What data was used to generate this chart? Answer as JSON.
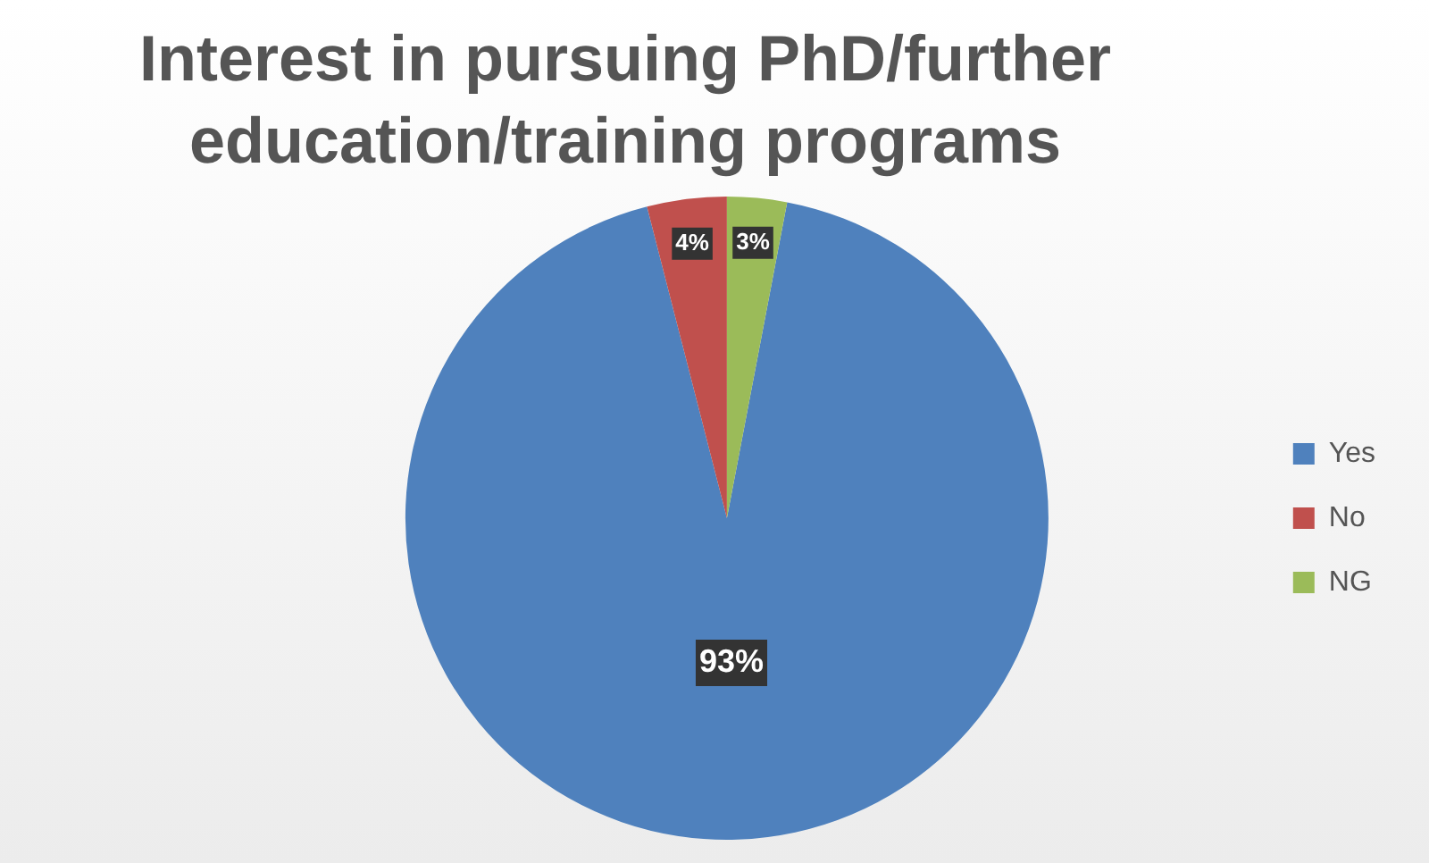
{
  "chart_data": {
    "type": "pie",
    "title": "Interest in pursuing PhD/further education/training programs",
    "categories": [
      "Yes",
      "No",
      "NG"
    ],
    "values": [
      93,
      4,
      3
    ],
    "colors": [
      "#4f81bd",
      "#c0504d",
      "#9bbb59"
    ],
    "value_labels": [
      "93%",
      "4%",
      "3%"
    ],
    "legend": "right"
  }
}
